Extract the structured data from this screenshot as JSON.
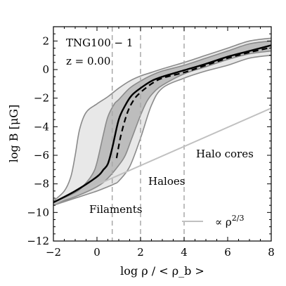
{
  "chart_data": {
    "type": "line",
    "xlabel": "log ρ / < ρ_b >",
    "ylabel": "log B [μG]",
    "xlim": [
      -2,
      8
    ],
    "ylim": [
      -12,
      3
    ],
    "x_ticks": [
      -2,
      0,
      2,
      4,
      6,
      8
    ],
    "y_ticks": [
      -12,
      -10,
      -8,
      -6,
      -4,
      -2,
      0,
      2
    ],
    "x_tick_labels": [
      "−2",
      "0",
      "2",
      "4",
      "6",
      "8"
    ],
    "y_tick_labels": [
      "−12",
      "−10",
      "−8",
      "−6",
      "−4",
      "−2",
      "0",
      "2"
    ],
    "annotations": {
      "run": "TNG100 − 1",
      "redshift": "z = 0.00",
      "region_filaments": "Filaments",
      "region_haloes": "Haloes",
      "region_halo_cores": "Halo cores",
      "legend_slope": "∝ ρ^{2/3}"
    },
    "vertical_markers": [
      0.7,
      2.0,
      4.0
    ],
    "colors": {
      "outer_band": "#e8e8e8",
      "inner_band": "#bdbdbd",
      "band_edge": "#8a8a8a",
      "median": "#000000",
      "mean": "#000000",
      "slope_line": "#c0c0c0",
      "marker": "#a8a8a8"
    },
    "series": [
      {
        "role": "outer_upper",
        "x": [
          -2.0,
          -1.5,
          -1.2,
          -1.0,
          -0.8,
          -0.5,
          0.0,
          0.5,
          1.0,
          1.5,
          2.0,
          2.5,
          3.0,
          4.0,
          5.0,
          6.0,
          7.0,
          8.0
        ],
        "y": [
          -9.2,
          -8.5,
          -7.5,
          -6.0,
          -4.2,
          -3.0,
          -2.4,
          -1.9,
          -1.3,
          -0.8,
          -0.45,
          -0.2,
          0.05,
          0.5,
          1.0,
          1.5,
          2.0,
          2.2
        ]
      },
      {
        "role": "outer_lower",
        "x": [
          -2.0,
          -1.0,
          0.0,
          0.5,
          0.8,
          1.0,
          1.5,
          2.0,
          2.5,
          3.0,
          4.0,
          5.0,
          6.0,
          7.0,
          8.0
        ],
        "y": [
          -9.5,
          -9.0,
          -8.5,
          -8.2,
          -8.0,
          -7.8,
          -6.8,
          -4.8,
          -2.5,
          -1.3,
          -0.6,
          -0.1,
          0.3,
          0.8,
          1.0
        ]
      },
      {
        "role": "inner_upper",
        "x": [
          -2.0,
          -1.0,
          -0.6,
          -0.2,
          0.0,
          0.3,
          0.5,
          0.8,
          1.0,
          1.5,
          2.0,
          2.5,
          3.0,
          4.0,
          5.0,
          6.0,
          7.0,
          8.0
        ],
        "y": [
          -9.3,
          -8.6,
          -8.1,
          -7.3,
          -6.5,
          -4.5,
          -3.3,
          -2.4,
          -2.1,
          -1.3,
          -0.8,
          -0.4,
          -0.1,
          0.3,
          0.8,
          1.3,
          1.8,
          2.0
        ]
      },
      {
        "role": "inner_lower",
        "x": [
          -2.0,
          -1.0,
          0.0,
          0.5,
          1.0,
          1.3,
          1.6,
          2.0,
          2.3,
          2.6,
          3.0,
          4.0,
          5.0,
          6.0,
          7.0,
          8.0
        ],
        "y": [
          -9.4,
          -8.9,
          -8.2,
          -7.6,
          -6.7,
          -6.0,
          -4.8,
          -3.2,
          -2.2,
          -1.6,
          -1.1,
          -0.3,
          0.2,
          0.7,
          1.1,
          1.3
        ]
      },
      {
        "role": "median",
        "style": "solid",
        "x": [
          -2.0,
          -1.0,
          0.0,
          0.3,
          0.5,
          0.7,
          1.0,
          1.3,
          1.6,
          2.0,
          2.5,
          3.0,
          4.0,
          5.0,
          6.0,
          7.0,
          8.0
        ],
        "y": [
          -9.3,
          -8.5,
          -7.5,
          -7.0,
          -6.6,
          -5.5,
          -3.5,
          -2.5,
          -1.8,
          -1.3,
          -0.8,
          -0.5,
          -0.05,
          0.4,
          0.9,
          1.3,
          1.7
        ]
      },
      {
        "role": "mean",
        "style": "dashed",
        "x": [
          0.9,
          1.1,
          1.4,
          1.7,
          2.0,
          2.5,
          3.0,
          4.0,
          5.0,
          6.0,
          7.0,
          8.0
        ],
        "y": [
          -6.2,
          -4.6,
          -3.0,
          -2.1,
          -1.6,
          -1.0,
          -0.6,
          -0.2,
          0.3,
          0.8,
          1.2,
          1.55
        ]
      },
      {
        "role": "slope_line",
        "x": [
          -2.0,
          8.0
        ],
        "y": [
          -9.4,
          -2.7
        ]
      }
    ]
  }
}
